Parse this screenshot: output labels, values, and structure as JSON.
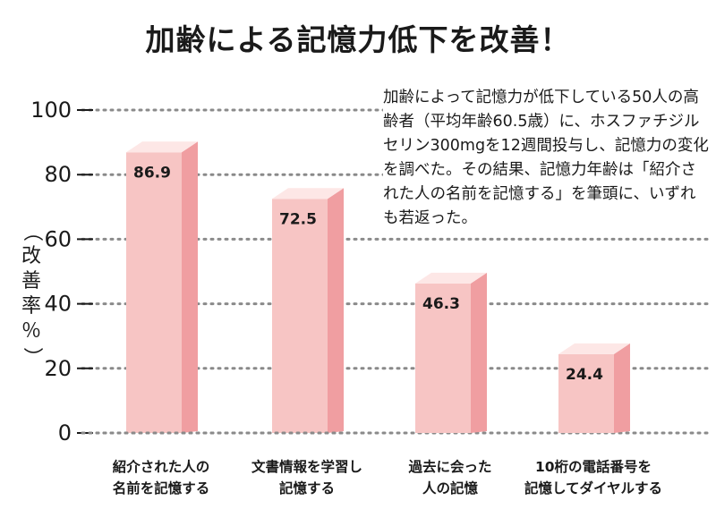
{
  "chart_data": {
    "type": "bar",
    "title": "加齢による記憶力低下を改善！",
    "ylabel": "（改善率％）",
    "ylim": [
      0,
      100
    ],
    "yticks": [
      0,
      20,
      40,
      60,
      80,
      100
    ],
    "grid": true,
    "categories": [
      "紹介された人の\n名前を記憶する",
      "文書情報を学習し\n記憶する",
      "過去に会った\n人の記憶",
      "10桁の電話番号を\n記憶してダイヤルする"
    ],
    "values": [
      86.9,
      72.5,
      46.3,
      24.4
    ],
    "data_labels": [
      "86.9",
      "72.5",
      "46.3",
      "24.4"
    ],
    "annotation": "加齢によって記憶力が低下している50人の高齢者（平均年齢60.5歳）に、ホスファチジルセリン300mgを12週間投与し、記憶力の変化を調べた。その結果、記憶力年齢は「紹介された人の名前を記憶する」を筆頭に、いずれも若返った。"
  },
  "colors": {
    "bar_front": "#f7c5c4",
    "bar_side": "#f09ea1",
    "bar_top": "#fde7e6",
    "gridline": "#8a8a8a",
    "text": "#1a1a1a"
  }
}
